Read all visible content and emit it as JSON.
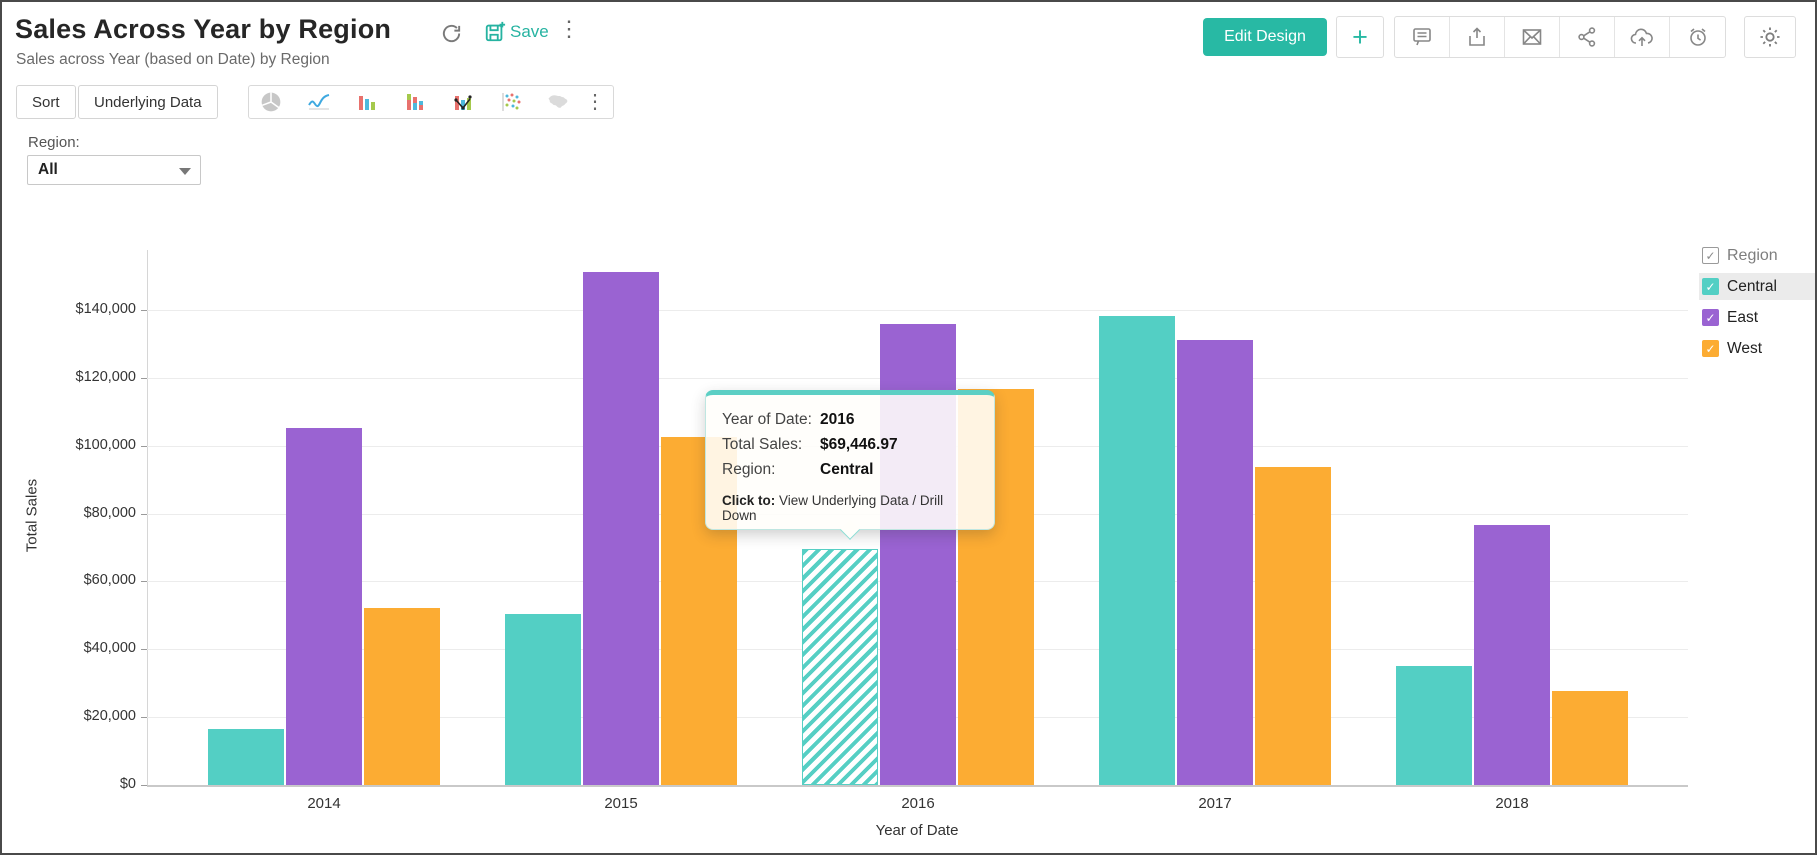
{
  "header": {
    "title": "Sales Across Year by Region",
    "subtitle": "Sales across Year (based on Date) by Region",
    "save_label": "Save",
    "edit_design_label": "Edit Design",
    "add_label": "+",
    "accent_color": "#28b9a4"
  },
  "toolbar": {
    "sort_label": "Sort",
    "underlying_data_label": "Underlying Data",
    "chart_types": [
      "pie",
      "line",
      "bar",
      "stacked-bar",
      "combination",
      "scatter",
      "map"
    ]
  },
  "filter": {
    "label": "Region:",
    "value": "All"
  },
  "tooltip": {
    "rows": [
      {
        "label": "Year of Date:",
        "value": "2016"
      },
      {
        "label": "Total Sales:",
        "value": "$69,446.97"
      },
      {
        "label": "Region:",
        "value": "Central"
      }
    ],
    "footer_label": "Click to:",
    "footer_text": " View Underlying Data / Drill Down"
  },
  "legend": {
    "title": "Region",
    "items": [
      {
        "label": "Central",
        "color": "#53CFC4",
        "checked": true,
        "highlighted": true
      },
      {
        "label": "East",
        "color": "#9A63D2",
        "checked": true,
        "highlighted": false
      },
      {
        "label": "West",
        "color": "#FCAC33",
        "checked": true,
        "highlighted": false
      }
    ]
  },
  "chart_data": {
    "type": "bar",
    "title": "Sales Across Year by Region",
    "xlabel": "Year of Date",
    "ylabel": "Total Sales",
    "categories": [
      "2014",
      "2015",
      "2016",
      "2017",
      "2018"
    ],
    "series": [
      {
        "name": "Central",
        "color": "#53CFC4",
        "values": [
          16500,
          50400,
          69446.97,
          138200,
          35200
        ]
      },
      {
        "name": "East",
        "color": "#9A63D2",
        "values": [
          105300,
          151200,
          135900,
          131200,
          76600
        ]
      },
      {
        "name": "West",
        "color": "#FCAC33",
        "values": [
          52300,
          102700,
          116700,
          93700,
          27600
        ]
      }
    ],
    "ylim": [
      0,
      157700
    ],
    "ytick_step": 20000,
    "yticks": [
      "$0",
      "$20,000",
      "$40,000",
      "$60,000",
      "$80,000",
      "$100,000",
      "$120,000",
      "$140,000"
    ],
    "grid": true,
    "legend_position": "right",
    "highlighted": {
      "category": "2016",
      "series": "Central"
    }
  }
}
